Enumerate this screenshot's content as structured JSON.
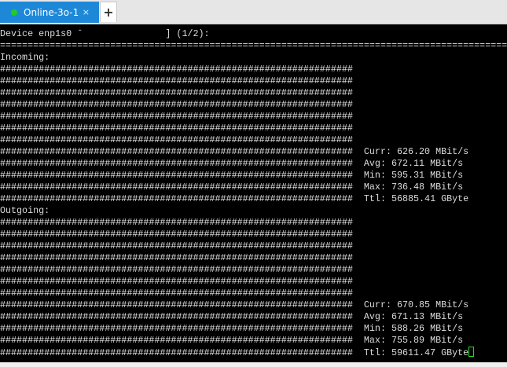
{
  "tabs": [
    {
      "label": "Online-3o-1",
      "status_color": "#22cc22",
      "active": true
    }
  ],
  "new_tab_label": "+",
  "close_label": "×",
  "terminal": {
    "header": "Device enp1s0 ˉ               ] (1/2):",
    "separator": "================================================================================================",
    "sections": [
      {
        "label": "Incoming:",
        "graph_row": "################################################################",
        "graph_rows": 12,
        "stats": [
          "Curr: 626.20 MBit/s",
          "Avg: 672.11 MBit/s",
          "Min: 595.31 MBit/s",
          "Max: 736.48 MBit/s",
          "Ttl: 56885.41 GByte"
        ]
      },
      {
        "label": "Outgoing:",
        "graph_row": "################################################################",
        "graph_rows": 12,
        "stats": [
          "Curr: 670.85 MBit/s",
          "Avg: 671.13 MBit/s",
          "Min: 588.26 MBit/s",
          "Max: 755.89 MBit/s",
          "Ttl: 59611.47 GByte"
        ]
      }
    ]
  }
}
